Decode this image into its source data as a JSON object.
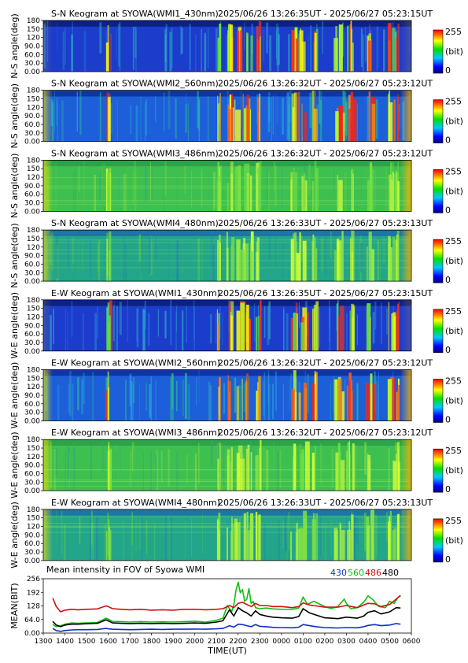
{
  "keograms": [
    {
      "title": "S-N Keogram at SYOWA(WMI1_430nm)",
      "time_range": "2025/06/26 13:26:35UT - 2025/06/27 05:23:15UT",
      "ylabel": "N-S angle(deg)",
      "palette": "blue"
    },
    {
      "title": "S-N Keogram at SYOWA(WMI2_560nm)",
      "time_range": "2025/06/26 13:26:32UT - 2025/06/27 05:23:12UT",
      "ylabel": "N-S angle(deg)",
      "palette": "vivid"
    },
    {
      "title": "S-N Keogram at SYOWA(WMI3_486nm)",
      "time_range": "2025/06/26 13:26:32UT - 2025/06/27 05:23:12UT",
      "ylabel": "N-S angle(deg)",
      "palette": "green"
    },
    {
      "title": "S-N Keogram at SYOWA(WMI4_480nm)",
      "time_range": "2025/06/26 13:26:33UT - 2025/06/27 05:23:13UT",
      "ylabel": "N-S angle(deg)",
      "palette": "greenblue"
    },
    {
      "title": "E-W Keogram at SYOWA(WMI1_430nm)",
      "time_range": "2025/06/26 13:26:35UT - 2025/06/27 05:23:15UT",
      "ylabel": "W-E angle(deg)",
      "palette": "blue"
    },
    {
      "title": "E-W Keogram at SYOWA(WMI2_560nm)",
      "time_range": "2025/06/26 13:26:32UT - 2025/06/27 05:23:12UT",
      "ylabel": "W-E angle(deg)",
      "palette": "vivid"
    },
    {
      "title": "E-W Keogram at SYOWA(WMI3_486nm)",
      "time_range": "2025/06/26 13:26:32UT - 2025/06/27 05:23:12UT",
      "ylabel": "W-E angle(deg)",
      "palette": "green"
    },
    {
      "title": "E-W Keogram at SYOWA(WMI4_480nm)",
      "time_range": "2025/06/26 13:26:33UT - 2025/06/27 05:23:13UT",
      "ylabel": "W-E angle(deg)",
      "palette": "greenblue"
    }
  ],
  "keogram_yticks": [
    "0.00",
    "30.0",
    "60.0",
    "90.0",
    "120",
    "150",
    "180"
  ],
  "colorbar": {
    "max_label": "255",
    "unit_label": "(bit)",
    "min_label": "0"
  },
  "chart_data": {
    "type": "line",
    "title": "Mean intensity in FOV of Syowa WMI",
    "xlabel": "TIME(UT)",
    "ylabel": "MEAN(BIT)",
    "xlim": [
      13.0,
      30.0
    ],
    "ylim": [
      0,
      256
    ],
    "xtick_labels": [
      "1300",
      "1400",
      "1500",
      "1600",
      "1700",
      "1800",
      "1900",
      "2000",
      "2100",
      "2200",
      "2300",
      "0000",
      "0100",
      "0200",
      "0300",
      "0400",
      "0500",
      "0600"
    ],
    "ytick_values": [
      0,
      64,
      128,
      192,
      256
    ],
    "ytick_labels": [
      "0.00",
      "64.0",
      "128",
      "192",
      "256"
    ],
    "grid": false,
    "legend_placement": "top-right",
    "series": [
      {
        "name": "430",
        "color": "#1030c8",
        "x": [
          13.44,
          13.6,
          13.8,
          14.0,
          14.3,
          14.6,
          15.0,
          15.5,
          15.9,
          16.0,
          16.2,
          16.6,
          17.0,
          17.5,
          18.0,
          18.5,
          19.0,
          19.5,
          20.0,
          20.5,
          21.0,
          21.3,
          21.6,
          21.8,
          22.0,
          22.2,
          22.4,
          22.6,
          22.8,
          23.0,
          23.3,
          23.6,
          24.0,
          24.5,
          24.8,
          25.0,
          25.3,
          25.6,
          26.0,
          26.3,
          26.6,
          27.0,
          27.5,
          27.8,
          28.0,
          28.3,
          28.6,
          29.0,
          29.3,
          29.5
        ],
        "y": [
          22,
          12,
          8,
          12,
          15,
          16,
          16,
          17,
          22,
          20,
          18,
          17,
          16,
          17,
          18,
          17,
          18,
          18,
          19,
          18,
          20,
          22,
          35,
          28,
          42,
          40,
          35,
          30,
          40,
          32,
          30,
          27,
          26,
          25,
          28,
          40,
          35,
          30,
          26,
          25,
          24,
          26,
          25,
          30,
          36,
          40,
          35,
          38,
          45,
          42
        ]
      },
      {
        "name": "560",
        "color": "#10c010",
        "x": [
          13.44,
          13.6,
          13.8,
          14.0,
          14.3,
          14.6,
          15.0,
          15.5,
          15.9,
          16.0,
          16.2,
          16.6,
          17.0,
          17.5,
          18.0,
          18.5,
          19.0,
          19.5,
          20.0,
          20.5,
          21.0,
          21.3,
          21.5,
          21.7,
          21.8,
          21.9,
          22.0,
          22.1,
          22.2,
          22.3,
          22.4,
          22.5,
          22.6,
          22.7,
          22.8,
          23.0,
          23.3,
          23.6,
          24.0,
          24.5,
          24.8,
          25.0,
          25.2,
          25.5,
          25.8,
          26.0,
          26.3,
          26.6,
          26.9,
          27.0,
          27.2,
          27.5,
          27.8,
          28.0,
          28.2,
          28.5,
          28.8,
          29.0,
          29.2,
          29.4,
          29.5
        ],
        "y": [
          40,
          30,
          35,
          42,
          48,
          46,
          48,
          50,
          70,
          66,
          55,
          54,
          52,
          54,
          52,
          53,
          52,
          54,
          56,
          52,
          60,
          70,
          130,
          100,
          135,
          200,
          240,
          190,
          205,
          150,
          160,
          210,
          140,
          150,
          120,
          115,
          118,
          114,
          112,
          112,
          118,
          170,
          135,
          150,
          135,
          125,
          115,
          125,
          160,
          140,
          115,
          120,
          145,
          175,
          160,
          125,
          120,
          150,
          140,
          170,
          175
        ]
      },
      {
        "name": "486",
        "color": "#d01010",
        "x": [
          13.44,
          13.6,
          13.8,
          14.0,
          14.3,
          14.6,
          15.0,
          15.5,
          15.9,
          16.0,
          16.2,
          16.6,
          17.0,
          17.5,
          18.0,
          18.5,
          19.0,
          19.5,
          20.0,
          20.5,
          21.0,
          21.3,
          21.6,
          21.8,
          22.0,
          22.2,
          22.4,
          22.6,
          22.8,
          23.0,
          23.3,
          23.6,
          24.0,
          24.5,
          24.8,
          25.0,
          25.3,
          25.6,
          26.0,
          26.3,
          26.6,
          27.0,
          27.5,
          27.8,
          28.0,
          28.3,
          28.6,
          29.0,
          29.3,
          29.5
        ],
        "y": [
          165,
          125,
          100,
          108,
          112,
          110,
          112,
          114,
          128,
          125,
          115,
          112,
          110,
          112,
          108,
          110,
          108,
          112,
          112,
          110,
          112,
          115,
          130,
          120,
          140,
          145,
          135,
          125,
          140,
          130,
          130,
          125,
          125,
          120,
          125,
          142,
          132,
          128,
          122,
          122,
          122,
          130,
          120,
          132,
          140,
          138,
          125,
          135,
          160,
          178
        ]
      },
      {
        "name": "480",
        "color": "#000000",
        "x": [
          13.44,
          13.6,
          13.8,
          14.0,
          14.3,
          14.6,
          15.0,
          15.5,
          15.9,
          16.0,
          16.2,
          16.6,
          17.0,
          17.5,
          18.0,
          18.5,
          19.0,
          19.5,
          20.0,
          20.5,
          21.0,
          21.3,
          21.6,
          21.8,
          22.0,
          22.2,
          22.4,
          22.6,
          22.8,
          23.0,
          23.3,
          23.6,
          24.0,
          24.5,
          24.8,
          25.0,
          25.3,
          25.6,
          26.0,
          26.3,
          26.6,
          27.0,
          27.5,
          27.8,
          28.0,
          28.3,
          28.6,
          29.0,
          29.3,
          29.5
        ],
        "y": [
          55,
          38,
          30,
          38,
          42,
          42,
          44,
          46,
          62,
          58,
          48,
          46,
          45,
          46,
          45,
          46,
          45,
          46,
          48,
          46,
          52,
          58,
          110,
          80,
          120,
          105,
          95,
          80,
          105,
          88,
          80,
          75,
          72,
          70,
          78,
          115,
          95,
          85,
          72,
          70,
          68,
          75,
          70,
          80,
          98,
          105,
          90,
          100,
          120,
          118
        ]
      }
    ]
  }
}
